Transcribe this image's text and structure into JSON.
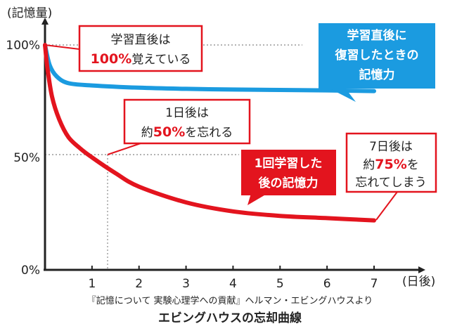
{
  "chart_data": {
    "type": "line",
    "ylabel": "(記憶量)",
    "xlabel": "(日後)",
    "x_ticks": [
      "1",
      "2",
      "3",
      "4",
      "5",
      "6",
      "7"
    ],
    "y_ticks": [
      "100%",
      "50%",
      "0%"
    ],
    "xlim": [
      0,
      7
    ],
    "ylim": [
      0,
      100
    ],
    "series": [
      {
        "name": "学習直後に復習したときの記憶力",
        "color": "#1b9be0",
        "x": [
          0,
          0.1,
          0.25,
          0.5,
          1,
          2,
          3,
          4,
          5,
          6,
          7
        ],
        "y": [
          100,
          91,
          86,
          83,
          82,
          81,
          80.5,
          80.2,
          80,
          79.8,
          79.5
        ]
      },
      {
        "name": "1回学習した後の記憶力",
        "color": "#e3141e",
        "x": [
          0,
          0.05,
          0.15,
          0.3,
          0.5,
          0.75,
          1,
          1.5,
          2,
          3,
          4,
          5,
          6,
          7
        ],
        "y": [
          100,
          90,
          77,
          67,
          59,
          54,
          50,
          43,
          37,
          30,
          26,
          24,
          23,
          22
        ]
      }
    ],
    "annotations": {
      "after_learning": {
        "line1": "学習直後は",
        "value": "100%",
        "rest": "覚えている"
      },
      "day1": {
        "line1": "1日後は",
        "pre": "約",
        "value": "50%",
        "post": "を忘れる"
      },
      "day7": {
        "line1": "7日後は",
        "pre": "約",
        "value": "75%",
        "post": "を",
        "line3": "忘れてしまう"
      },
      "review": {
        "line1": "学習直後に",
        "line2": "復習したときの",
        "line3": "記憶力"
      },
      "once": {
        "line1": "1回学習した",
        "line2": "後の記憶力"
      }
    },
    "source": "『記憶について 実験心理学への貢献』ヘルマン・エビングハウスより",
    "caption": "エビングハウスの忘却曲線"
  }
}
